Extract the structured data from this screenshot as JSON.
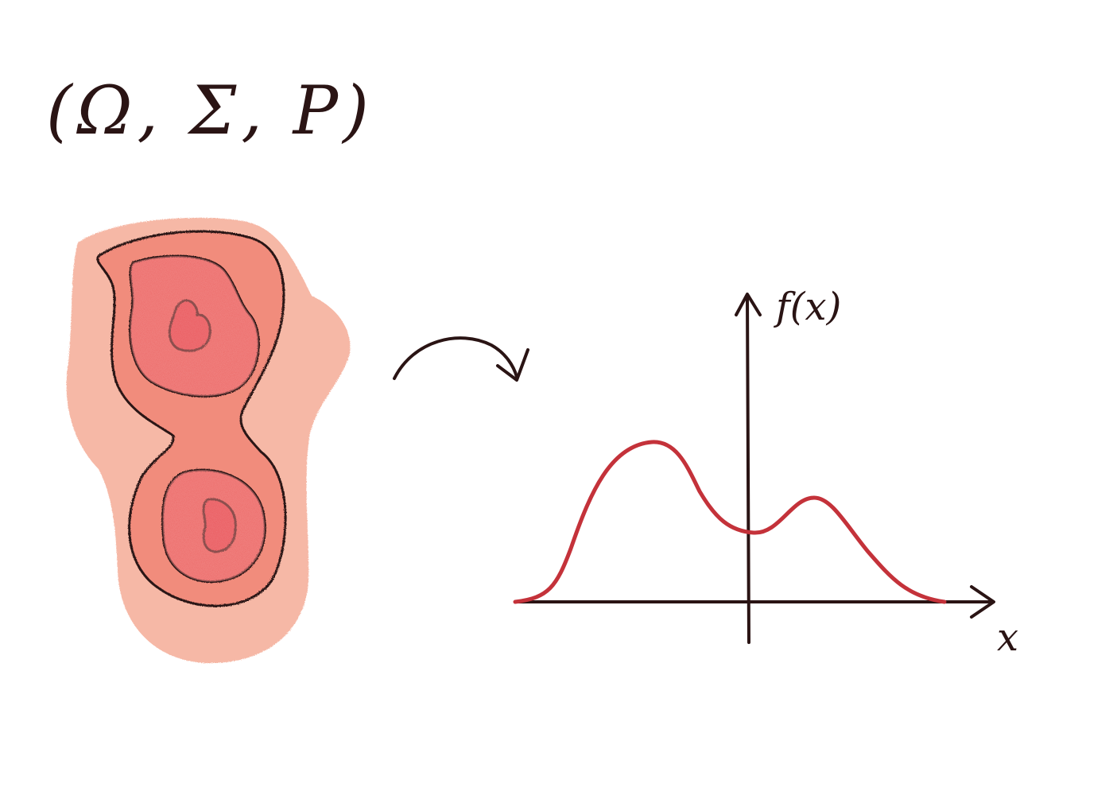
{
  "title_text": "(Ω, Σ, P)",
  "graph": {
    "y_axis_label": "f(x)",
    "x_axis_label": "x"
  },
  "colors": {
    "ink": "#2a1414",
    "curve": "#c4323a",
    "blob_level_1": "#f6b8a6",
    "blob_level_2": "#f18c7c",
    "blob_level_3": "#ee6a68",
    "blob_level_4": "#e84a52"
  },
  "icons": {
    "mapping_arrow": "curved-arrow-icon"
  }
}
